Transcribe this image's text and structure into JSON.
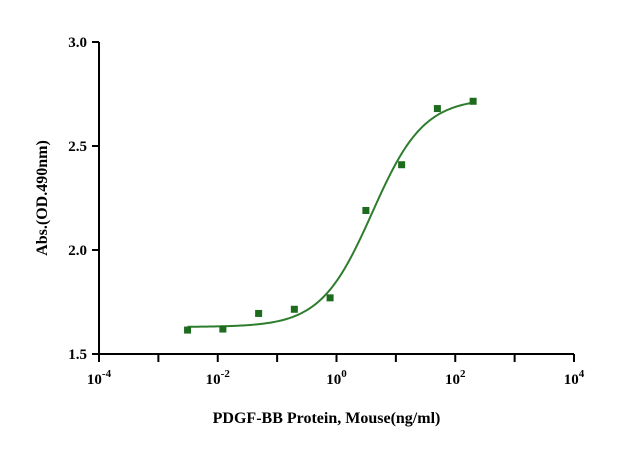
{
  "chart_data": {
    "type": "scatter",
    "xlabel": "PDGF-BB Protein, Mouse(ng/ml)",
    "ylabel": "Abs.(OD.490nm)",
    "x_scale": "log10",
    "xlim": [
      0.0001,
      10000
    ],
    "ylim": [
      1.5,
      3.0
    ],
    "x_ticks": [
      {
        "base": "10",
        "exp": "-4"
      },
      {
        "base": "10",
        "exp": "-2"
      },
      {
        "base": "10",
        "exp": "0"
      },
      {
        "base": "10",
        "exp": "2"
      },
      {
        "base": "10",
        "exp": "4"
      }
    ],
    "y_ticks": [
      "1.5",
      "2.0",
      "2.5",
      "3.0"
    ],
    "grid": false,
    "colors": {
      "series": "#1e6b1e",
      "curve": "#2e7d2e"
    },
    "series": [
      {
        "x": [
          0.0031,
          0.0122,
          0.0488,
          0.195,
          0.78,
          3.125,
          12.5,
          50,
          200
        ],
        "y": [
          1.615,
          1.62,
          1.695,
          1.715,
          1.77,
          2.19,
          2.41,
          2.68,
          2.715
        ]
      }
    ],
    "fit": {
      "model": "4PL",
      "bottom": 1.63,
      "top": 2.73,
      "ec50": 4.0,
      "hill": 1.0
    }
  }
}
